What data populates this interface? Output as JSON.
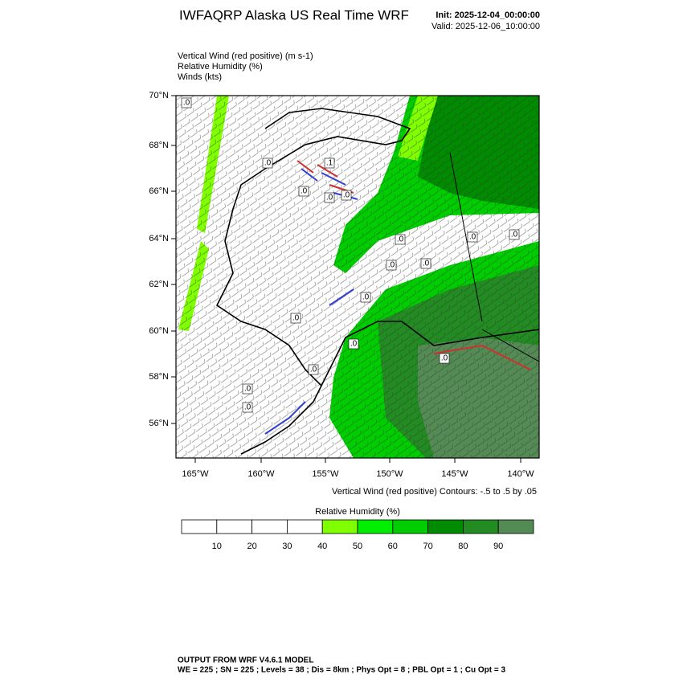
{
  "header": {
    "title": "IWFAQRP Alaska US Real Time WRF",
    "init": "Init: 2025-12-04_00:00:00",
    "valid": "Valid: 2025-12-06_10:00:00"
  },
  "fields": [
    "Vertical Wind (red positive)   (m s-1)",
    "Relative Humidity   (%)",
    "Winds   (kts)"
  ],
  "map": {
    "lat_labels": [
      "70°N",
      "68°N",
      "66°N",
      "64°N",
      "62°N",
      "60°N",
      "58°N",
      "56°N"
    ],
    "lon_labels": [
      "165°W",
      "160°W",
      "155°W",
      "150°W",
      "145°W",
      "140°W"
    ],
    "contour_labels": [
      ".0",
      ".0",
      ".1",
      ".0",
      ".0",
      ".0",
      ".0",
      ".0",
      ".0",
      ".0",
      ".0",
      ".0",
      ".0",
      ".0",
      ".0",
      ".0",
      ".0",
      ".0"
    ],
    "contour_note": "Vertical Wind (red positive) Contours: -.5 to .5 by .05"
  },
  "colorbar": {
    "title": "Relative Humidity  (%)",
    "labels": [
      "10",
      "20",
      "30",
      "40",
      "50",
      "60",
      "70",
      "80",
      "90"
    ],
    "colors": [
      "#ffffff",
      "#ffffff",
      "#ffffff",
      "#ffffff",
      "#7fff00",
      "#00ee00",
      "#00cd00",
      "#008b00",
      "#228b22",
      "#548b54"
    ]
  },
  "footer": [
    "OUTPUT FROM WRF V4.6.1 MODEL",
    "WE = 225 ; SN = 225 ; Levels = 38 ; Dis = 8km ; Phys Opt = 8 ; PBL Opt = 1 ; Cu Opt = 3"
  ]
}
